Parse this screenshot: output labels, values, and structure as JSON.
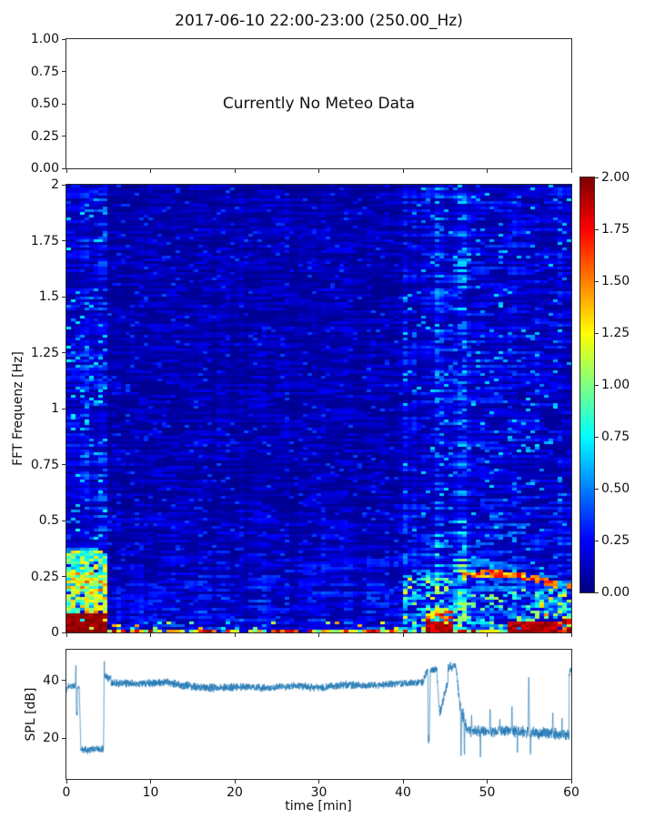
{
  "title": "2017-06-10 22:00-23:00 (250.00_Hz)",
  "chart_data": [
    {
      "type": "text-panel",
      "message": "Currently No Meteo Data",
      "xlim": [
        0,
        60
      ],
      "ylim": [
        0,
        1
      ],
      "yticks": [
        1.0,
        0.75,
        0.5,
        0.25,
        0.0
      ],
      "ytick_labels": [
        "1.00",
        "0.75",
        "0.50",
        "0.25",
        "0.00"
      ],
      "xticks": [
        0,
        10,
        20,
        30,
        40,
        50,
        60
      ],
      "xtick_labels_visible": false
    },
    {
      "type": "heatmap",
      "ylabel": "FFT Frequenz [Hz]",
      "xlim": [
        0,
        60
      ],
      "ylim": [
        0,
        2
      ],
      "vmin": 0,
      "vmax": 2,
      "colormap": "jet",
      "yticks": [
        2,
        1.75,
        1.5,
        1.25,
        1,
        0.75,
        0.5,
        0.25,
        0
      ],
      "ytick_labels": [
        "2",
        "1.75",
        "1.5",
        "1.25",
        "1",
        "0.75",
        "0.5",
        "0.25",
        "0"
      ],
      "xticks": [
        0,
        10,
        20,
        30,
        40,
        50,
        60
      ],
      "xtick_labels_visible": false,
      "colorbar": {
        "ticks": [
          2.0,
          1.75,
          1.5,
          1.25,
          1.0,
          0.75,
          0.5,
          0.25,
          0.0
        ],
        "tick_labels": [
          "2.00",
          "1.75",
          "1.50",
          "1.25",
          "1.00",
          "0.75",
          "0.50",
          "0.25",
          "0.00"
        ]
      },
      "seed": 20170610,
      "base_sections": [
        {
          "t": [
            0,
            4.9
          ],
          "base": 0.21
        },
        {
          "t": [
            4.9,
            40.2
          ],
          "base": 0.1
        },
        {
          "t": [
            40.2,
            60
          ],
          "base": 0.17
        }
      ],
      "low_freq_boost": {
        "cutoff": 0.6,
        "gain": 1.15
      },
      "bright_columns": {
        "t": [
          43.8,
          47.4
        ],
        "prob": 0.35,
        "factor": 1.65
      },
      "regions": [
        {
          "t": [
            0,
            4.9
          ],
          "f": [
            0,
            2
          ],
          "v": [
            0.5,
            0.78
          ],
          "density": 0.07
        },
        {
          "t": [
            4.9,
            40.2
          ],
          "f": [
            0,
            2
          ],
          "v": [
            0.26,
            0.4
          ],
          "density": 0.05
        },
        {
          "t": [
            40.2,
            60
          ],
          "f": [
            0,
            2
          ],
          "v": [
            0.45,
            0.7
          ],
          "density": 0.05
        },
        {
          "t": [
            0,
            4.9
          ],
          "f": [
            0,
            0.36
          ],
          "v": [
            0.5,
            1.35
          ],
          "density": 0.9
        },
        {
          "t": [
            0,
            4.9
          ],
          "f": [
            0,
            0.27
          ],
          "v": [
            0.9,
            1.6
          ],
          "density": 0.3
        },
        {
          "t": [
            0,
            4.9
          ],
          "f": [
            0,
            0.085
          ],
          "v": [
            1.88,
            2
          ],
          "density": 0.9
        },
        {
          "t": [
            0,
            60
          ],
          "f": [
            0,
            0.018
          ],
          "v": [
            0.85,
            2
          ],
          "density": 0.85
        },
        {
          "t": [
            0,
            4.9
          ],
          "f": [
            0,
            0.018
          ],
          "v": [
            1.95,
            2
          ],
          "density": 1
        },
        {
          "t": [
            4.9,
            40.2
          ],
          "f": [
            0,
            0.05
          ],
          "v": [
            0.5,
            1.5
          ],
          "density": 0.15
        },
        {
          "t": [
            40.2,
            47.6
          ],
          "f": [
            0,
            0.26
          ],
          "v": [
            0.5,
            1.3
          ],
          "density": 0.35
        },
        {
          "t": [
            42.6,
            45.8
          ],
          "f": [
            0,
            0.1
          ],
          "v": [
            1.1,
            1.9
          ],
          "density": 0.55
        },
        {
          "t": [
            42.6,
            45.8
          ],
          "f": [
            0,
            0.045
          ],
          "v": [
            1.75,
            2
          ],
          "density": 0.95
        },
        {
          "t": [
            52.5,
            58.2
          ],
          "f": [
            0,
            0.045
          ],
          "v": [
            1.8,
            2
          ],
          "density": 0.95
        },
        {
          "t": [
            47.6,
            58.2
          ],
          "f": [
            0,
            0.2
          ],
          "v": [
            0.45,
            1.1
          ],
          "density": 0.28
        },
        {
          "t": [
            55.5,
            58.2
          ],
          "f": [
            0.06,
            0.16
          ],
          "v": [
            0.9,
            1.5
          ],
          "density": 0.25
        },
        {
          "t": [
            58.2,
            60
          ],
          "f": [
            0,
            0.24
          ],
          "v": [
            0.5,
            1.4
          ],
          "density": 0.45
        },
        {
          "t": [
            58.2,
            60
          ],
          "f": [
            0,
            0.06
          ],
          "v": [
            1.4,
            2
          ],
          "density": 0.8
        },
        {
          "t": [
            59.3,
            60
          ],
          "f": [
            0.195,
            0.225
          ],
          "v": [
            1.5,
            1.7
          ],
          "density": 0.9
        }
      ],
      "arc": {
        "t": [
          47.2,
          58.2
        ],
        "t0": 50.5,
        "f0": 0.262,
        "curv": 0.00085,
        "halfwidth": 0.014,
        "v": [
          1.25,
          1.8
        ],
        "density": 0.88
      }
    },
    {
      "type": "line",
      "ylabel": "SPL [dB]",
      "xlabel": "time [min]",
      "line_color": "#1f77b4",
      "xlim": [
        0,
        60
      ],
      "ylim": [
        6.0,
        50.5
      ],
      "yticks": [
        40,
        20
      ],
      "ytick_labels": [
        "40",
        "20"
      ],
      "xticks": [
        0,
        10,
        20,
        30,
        40,
        50,
        60
      ],
      "xtick_labels": [
        "0",
        "10",
        "20",
        "30",
        "40",
        "50",
        "60"
      ],
      "segments": [
        [
          0,
          0.15,
          36,
          38,
          1.0
        ],
        [
          0.15,
          1.08,
          38,
          38,
          1.2
        ],
        [
          1.08,
          1.16,
          38,
          44,
          0.8
        ],
        [
          1.16,
          1.3,
          30,
          28,
          1.5
        ],
        [
          1.3,
          1.52,
          37,
          37.5,
          1.0
        ],
        [
          1.52,
          1.72,
          37.5,
          16.5,
          1.2
        ],
        [
          1.72,
          4.4,
          16,
          16.2,
          1.5
        ],
        [
          4.4,
          4.55,
          16.2,
          43,
          1.2
        ],
        [
          4.55,
          5.3,
          41.5,
          40.5,
          1.7
        ],
        [
          5.3,
          9,
          39,
          38.8,
          1.6
        ],
        [
          9,
          12,
          38.8,
          39.2,
          1.6
        ],
        [
          12,
          15,
          39.2,
          37.8,
          1.6
        ],
        [
          15,
          18,
          37.8,
          37.2,
          1.7
        ],
        [
          18,
          21,
          37.2,
          37.8,
          1.7
        ],
        [
          21,
          24,
          37.8,
          37.3,
          1.6
        ],
        [
          24,
          27,
          37.3,
          38.2,
          1.6
        ],
        [
          27,
          30,
          38.2,
          37.4,
          1.6
        ],
        [
          30,
          33,
          37.4,
          38.5,
          1.6
        ],
        [
          33,
          36,
          38.5,
          38.1,
          1.6
        ],
        [
          36,
          39,
          38.1,
          38.8,
          1.5
        ],
        [
          39,
          42.5,
          38.8,
          39.2,
          1.4
        ],
        [
          42.5,
          42.95,
          41,
          44,
          1.5
        ],
        [
          42.95,
          43.1,
          44,
          17.5,
          1.0
        ],
        [
          43.1,
          43.25,
          17.5,
          43,
          1.0
        ],
        [
          43.25,
          44.0,
          43.5,
          44,
          1.5
        ],
        [
          44.0,
          44.35,
          44,
          28.5,
          2.0
        ],
        [
          44.35,
          45.35,
          28.5,
          39.5,
          2.0
        ],
        [
          45.35,
          46.3,
          44.5,
          45,
          1.8
        ],
        [
          46.3,
          46.65,
          45,
          33,
          2.5
        ],
        [
          46.65,
          47.6,
          33,
          23,
          3.0
        ],
        [
          47.6,
          50,
          22.5,
          22.5,
          2.3
        ],
        [
          50,
          53,
          22.3,
          22.8,
          2.3
        ],
        [
          53,
          56,
          22.5,
          21.8,
          2.3
        ],
        [
          56,
          59.75,
          21.8,
          21.3,
          2.4
        ],
        [
          59.75,
          60,
          42,
          43.5,
          1.5
        ]
      ],
      "spikes": [
        [
          1.12,
          45.5,
          0.06
        ],
        [
          4.5,
          46.5,
          0.06
        ],
        [
          43.02,
          16.5,
          0.07
        ],
        [
          46.9,
          12.5,
          0.08
        ],
        [
          47.3,
          13,
          0.06
        ],
        [
          48.15,
          28,
          0.07
        ],
        [
          49.2,
          13.5,
          0.05
        ],
        [
          50.35,
          30.5,
          0.08
        ],
        [
          51.5,
          27,
          0.06
        ],
        [
          52.95,
          31,
          0.08
        ],
        [
          53.6,
          14,
          0.05
        ],
        [
          54.95,
          42.5,
          0.09
        ],
        [
          55.15,
          13.5,
          0.05
        ],
        [
          57.8,
          29.5,
          0.07
        ],
        [
          58.9,
          28,
          0.05
        ]
      ]
    }
  ]
}
